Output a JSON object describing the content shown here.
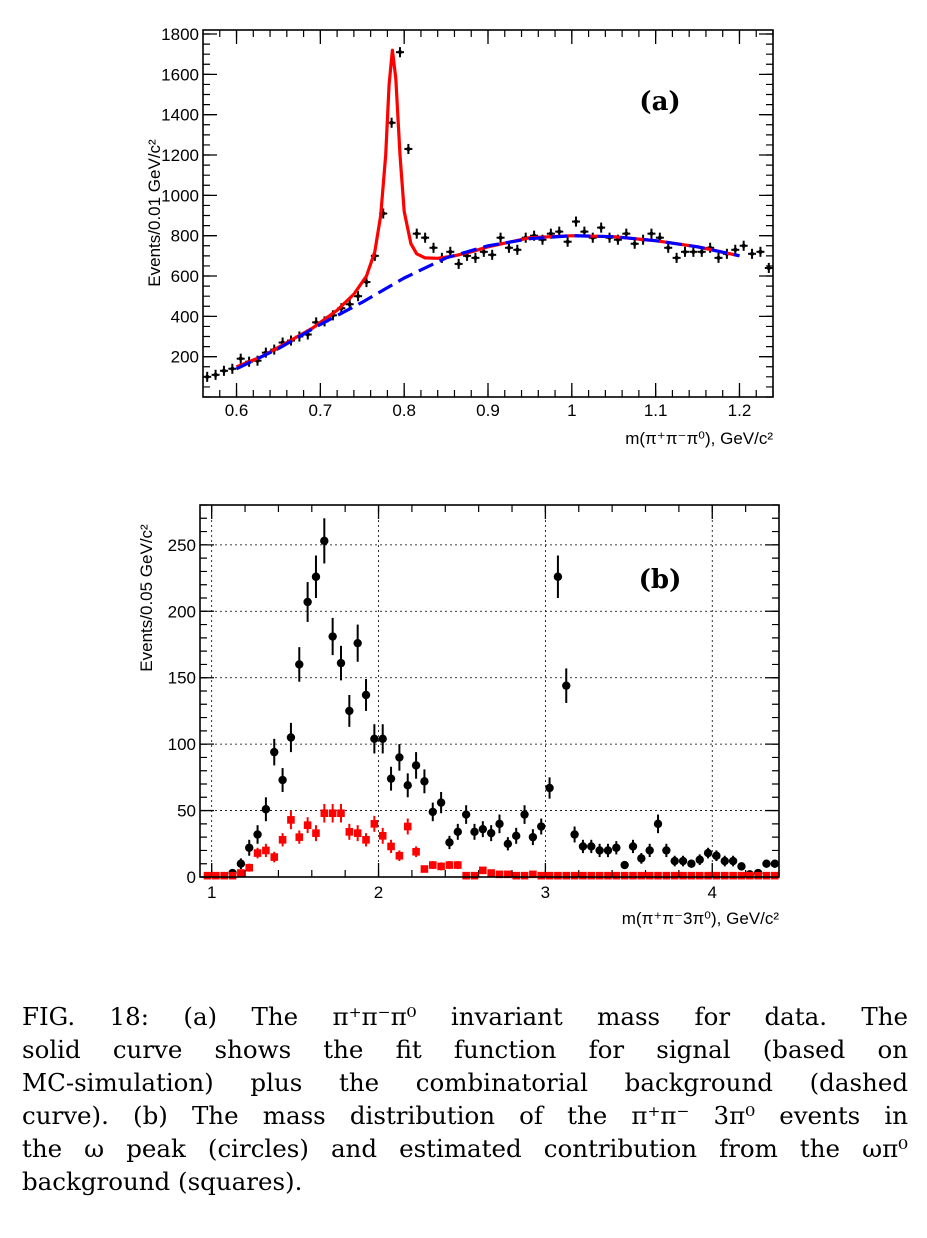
{
  "chart_data": [
    {
      "id": "a",
      "type": "scatter",
      "panel_label": "(a)",
      "xlabel": "m(π⁺π⁻π⁰), GeV/c²",
      "ylabel": "Events/0.01 GeV/c²",
      "xlim": [
        0.56,
        1.24
      ],
      "ylim": [
        0,
        1820
      ],
      "grid": false,
      "x_ticks": [
        0.6,
        0.7,
        0.8,
        0.9,
        1.0,
        1.1,
        1.2
      ],
      "x_tick_labels": [
        "0.6",
        "0.7",
        "0.8",
        "0.9",
        "1",
        "1.1",
        "1.2"
      ],
      "y_ticks": [
        200,
        400,
        600,
        800,
        1000,
        1200,
        1400,
        1600,
        1800
      ],
      "y_tick_labels": [
        "200",
        "400",
        "600",
        "800",
        "1000",
        "1200",
        "1400",
        "1600",
        "1800"
      ],
      "series": [
        {
          "kind": "points",
          "color": "#000000",
          "marker": "dot",
          "x": [
            0.565,
            0.575,
            0.585,
            0.595,
            0.605,
            0.615,
            0.625,
            0.635,
            0.645,
            0.655,
            0.665,
            0.675,
            0.685,
            0.695,
            0.705,
            0.715,
            0.725,
            0.735,
            0.745,
            0.755,
            0.765,
            0.775,
            0.785,
            0.795,
            0.805,
            0.815,
            0.825,
            0.835,
            0.845,
            0.855,
            0.865,
            0.875,
            0.885,
            0.895,
            0.905,
            0.915,
            0.925,
            0.935,
            0.945,
            0.955,
            0.965,
            0.975,
            0.985,
            0.995,
            1.005,
            1.015,
            1.025,
            1.035,
            1.045,
            1.055,
            1.065,
            1.075,
            1.085,
            1.095,
            1.105,
            1.115,
            1.125,
            1.135,
            1.145,
            1.155,
            1.165,
            1.175,
            1.185,
            1.195,
            1.205,
            1.215,
            1.225,
            1.235
          ],
          "y": [
            100,
            110,
            130,
            140,
            190,
            175,
            180,
            220,
            235,
            270,
            280,
            300,
            310,
            370,
            375,
            405,
            440,
            460,
            500,
            570,
            700,
            910,
            1360,
            1710,
            1230,
            810,
            790,
            740,
            690,
            720,
            660,
            700,
            690,
            720,
            705,
            790,
            740,
            730,
            790,
            800,
            780,
            810,
            820,
            770,
            870,
            820,
            790,
            840,
            790,
            780,
            810,
            760,
            780,
            810,
            790,
            740,
            690,
            720,
            720,
            720,
            740,
            690,
            710,
            730,
            750,
            710,
            720,
            640
          ],
          "yerr": 25
        },
        {
          "kind": "line",
          "style": "solid",
          "color": "#ff0000",
          "x": [
            0.6,
            0.63,
            0.66,
            0.69,
            0.72,
            0.74,
            0.755,
            0.765,
            0.772,
            0.778,
            0.782,
            0.786,
            0.79,
            0.795,
            0.8,
            0.808,
            0.815,
            0.825,
            0.84,
            0.86,
            0.88,
            0.9,
            0.95,
            1.0,
            1.05,
            1.1,
            1.15,
            1.2
          ],
          "y": [
            150,
            200,
            270,
            340,
            430,
            510,
            600,
            720,
            900,
            1200,
            1550,
            1720,
            1580,
            1200,
            920,
            760,
            710,
            690,
            688,
            700,
            720,
            745,
            790,
            800,
            795,
            775,
            745,
            700
          ]
        },
        {
          "kind": "line",
          "style": "dashed",
          "color": "#0000ff",
          "x": [
            0.6,
            0.65,
            0.7,
            0.75,
            0.8,
            0.85,
            0.9,
            0.95,
            1.0,
            1.05,
            1.1,
            1.15,
            1.2
          ],
          "y": [
            140,
            240,
            360,
            470,
            590,
            690,
            750,
            785,
            800,
            795,
            775,
            745,
            700
          ]
        }
      ]
    },
    {
      "id": "b",
      "type": "scatter",
      "panel_label": "(b)",
      "xlabel": "m(π⁺π⁻3π⁰), GeV/c²",
      "ylabel": "Events/0.05 GeV/c²",
      "xlim": [
        0.93,
        4.4
      ],
      "ylim": [
        0,
        280
      ],
      "grid": true,
      "x_ticks": [
        1,
        2,
        3,
        4
      ],
      "x_tick_labels": [
        "1",
        "2",
        "3",
        "4"
      ],
      "y_ticks": [
        0,
        50,
        100,
        150,
        200,
        250
      ],
      "y_tick_labels": [
        "0",
        "50",
        "100",
        "150",
        "200",
        "250"
      ],
      "series": [
        {
          "kind": "points",
          "color": "#000000",
          "marker": "circle",
          "x": [
            1.125,
            1.175,
            1.225,
            1.275,
            1.325,
            1.375,
            1.425,
            1.475,
            1.525,
            1.575,
            1.625,
            1.675,
            1.725,
            1.775,
            1.825,
            1.875,
            1.925,
            1.975,
            2.025,
            2.075,
            2.125,
            2.175,
            2.225,
            2.275,
            2.325,
            2.375,
            2.425,
            2.475,
            2.525,
            2.575,
            2.625,
            2.675,
            2.725,
            2.775,
            2.825,
            2.875,
            2.925,
            2.975,
            3.025,
            3.075,
            3.125,
            3.175,
            3.225,
            3.275,
            3.325,
            3.375,
            3.425,
            3.475,
            3.525,
            3.575,
            3.625,
            3.675,
            3.725,
            3.775,
            3.825,
            3.875,
            3.925,
            3.975,
            4.025,
            4.075,
            4.125,
            4.175,
            4.225,
            4.275,
            4.325,
            4.375
          ],
          "y": [
            3,
            10,
            22,
            32,
            51,
            94,
            73,
            105,
            160,
            207,
            226,
            253,
            181,
            161,
            125,
            176,
            137,
            104,
            104,
            74,
            90,
            69,
            84,
            72,
            49,
            56,
            26,
            34,
            47,
            34,
            36,
            33,
            40,
            25,
            31,
            47,
            30,
            38,
            67,
            226,
            144,
            32,
            23,
            23,
            20,
            20,
            22,
            9,
            23,
            14,
            20,
            40,
            20,
            12,
            12,
            10,
            13,
            18,
            16,
            12,
            12,
            8,
            2,
            3,
            10,
            10
          ],
          "yerr": [
            2,
            4,
            6,
            7,
            9,
            10,
            9,
            11,
            13,
            15,
            16,
            17,
            14,
            13,
            12,
            14,
            12,
            11,
            11,
            9,
            10,
            9,
            10,
            9,
            7,
            8,
            5,
            6,
            7,
            6,
            6,
            6,
            7,
            5,
            6,
            7,
            6,
            6,
            8,
            16,
            13,
            6,
            5,
            5,
            5,
            5,
            5,
            3,
            5,
            4,
            5,
            7,
            5,
            4,
            4,
            3,
            4,
            4,
            4,
            4,
            4,
            3,
            2,
            2,
            3,
            3
          ]
        },
        {
          "kind": "points",
          "color": "#ff0000",
          "marker": "square",
          "x": [
            0.975,
            1.025,
            1.075,
            1.125,
            1.175,
            1.225,
            1.275,
            1.325,
            1.375,
            1.425,
            1.475,
            1.525,
            1.575,
            1.625,
            1.675,
            1.725,
            1.775,
            1.825,
            1.875,
            1.925,
            1.975,
            2.025,
            2.075,
            2.125,
            2.175,
            2.225,
            2.275,
            2.325,
            2.375,
            2.425,
            2.475,
            2.525,
            2.575,
            2.625,
            2.675,
            2.725,
            2.775,
            2.825,
            2.875,
            2.925,
            2.975,
            3.025,
            3.075,
            3.125,
            3.175,
            3.225,
            3.275,
            3.325,
            3.375,
            3.425,
            3.475,
            3.525,
            3.575,
            3.625,
            3.675,
            3.725,
            3.775,
            3.825,
            3.875,
            3.925,
            3.975,
            4.025,
            4.075,
            4.125,
            4.175,
            4.225,
            4.275,
            4.325,
            4.375
          ],
          "y": [
            1,
            1,
            1,
            1,
            3,
            7,
            18,
            20,
            15,
            28,
            43,
            30,
            39,
            33,
            48,
            48,
            48,
            34,
            33,
            28,
            40,
            31,
            23,
            16,
            38,
            19,
            6,
            9,
            8,
            9,
            9,
            1,
            1,
            5,
            3,
            2,
            2,
            1,
            1,
            2,
            1,
            1,
            1,
            1,
            1,
            1,
            1,
            1,
            1,
            1,
            1,
            1,
            1,
            1,
            1,
            1,
            1,
            1,
            1,
            1,
            1,
            1,
            1,
            1,
            1,
            1,
            1,
            1,
            1
          ],
          "yerr": [
            1,
            1,
            1,
            1,
            2,
            3,
            4,
            5,
            4,
            5,
            7,
            5,
            6,
            6,
            7,
            7,
            7,
            6,
            6,
            5,
            6,
            6,
            5,
            4,
            6,
            4,
            2,
            3,
            3,
            3,
            3,
            1,
            1,
            2,
            2,
            1,
            1,
            1,
            1,
            1,
            1,
            1,
            1,
            1,
            1,
            1,
            1,
            1,
            1,
            1,
            1,
            1,
            1,
            1,
            1,
            1,
            1,
            1,
            1,
            1,
            1,
            1,
            1,
            1,
            1,
            1,
            1,
            1,
            1
          ]
        }
      ]
    }
  ],
  "caption": {
    "lines": [
      "FIG. 18: (a) The π⁺π⁻π⁰ invariant mass for data. The",
      "solid curve shows the fit function for signal (based on",
      "MC-simulation) plus the combinatorial background (dashed",
      "curve). (b) The mass distribution of the π⁺π⁻ 3π⁰ events in",
      "the ω peak (circles) and estimated contribution from the ωπ⁰",
      "background (squares)."
    ]
  }
}
